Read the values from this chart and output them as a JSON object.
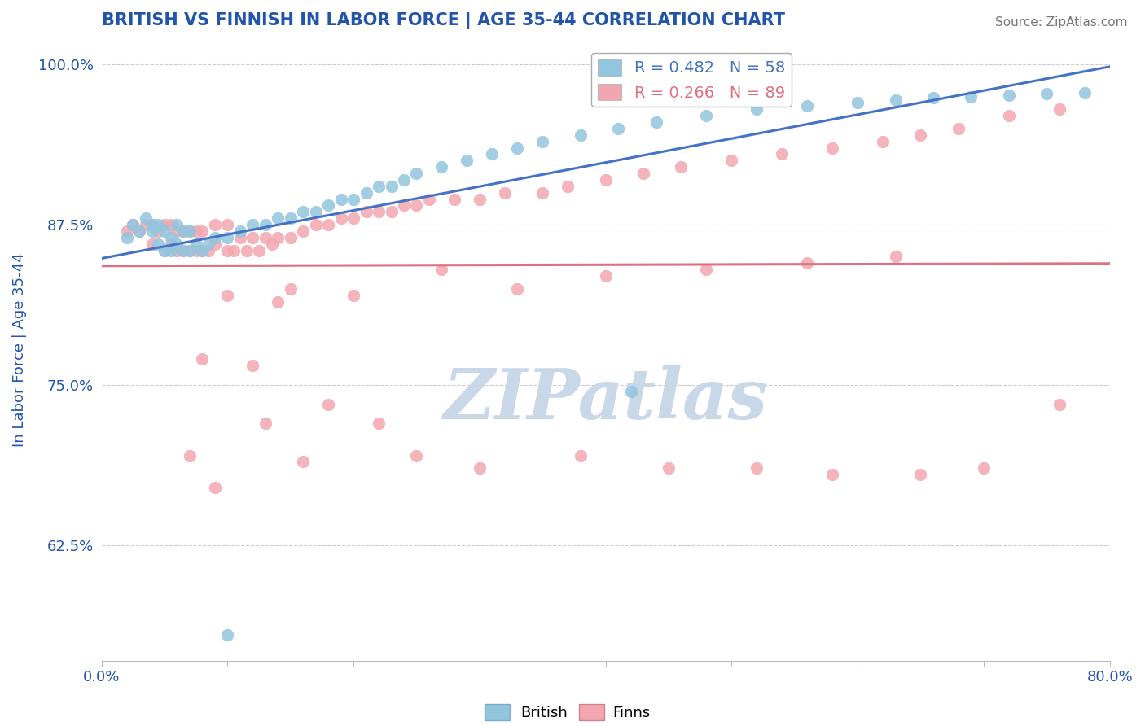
{
  "title": "BRITISH VS FINNISH IN LABOR FORCE | AGE 35-44 CORRELATION CHART",
  "source_text": "Source: ZipAtlas.com",
  "ylabel": "In Labor Force | Age 35-44",
  "xlim": [
    0.0,
    0.8
  ],
  "ylim": [
    0.535,
    1.02
  ],
  "yticks": [
    0.625,
    0.75,
    0.875,
    1.0
  ],
  "ytick_labels": [
    "62.5%",
    "75.0%",
    "87.5%",
    "100.0%"
  ],
  "british_color": "#92C5DE",
  "finns_color": "#F4A6B0",
  "british_line_color": "#4472C4",
  "finns_line_color": "#E07080",
  "legend_british_label": "R = 0.482   N = 58",
  "legend_finns_label": "R = 0.266   N = 89",
  "watermark": "ZIPatlas",
  "watermark_color": "#C8D8E8",
  "title_color": "#2255AA",
  "axis_label_color": "#2255AA",
  "tick_label_color": "#2255AA",
  "source_color": "#777777",
  "grid_color": "#CCCCCC",
  "background_color": "#FFFFFF",
  "british_x": [
    0.02,
    0.025,
    0.03,
    0.035,
    0.04,
    0.04,
    0.045,
    0.045,
    0.05,
    0.05,
    0.055,
    0.055,
    0.06,
    0.06,
    0.065,
    0.065,
    0.07,
    0.07,
    0.075,
    0.08,
    0.085,
    0.09,
    0.1,
    0.11,
    0.12,
    0.13,
    0.14,
    0.15,
    0.16,
    0.17,
    0.18,
    0.19,
    0.2,
    0.21,
    0.22,
    0.23,
    0.24,
    0.25,
    0.27,
    0.29,
    0.31,
    0.33,
    0.35,
    0.38,
    0.41,
    0.44,
    0.48,
    0.52,
    0.56,
    0.6,
    0.63,
    0.66,
    0.69,
    0.72,
    0.75,
    0.78,
    0.42,
    0.1
  ],
  "british_y": [
    0.865,
    0.875,
    0.87,
    0.88,
    0.87,
    0.875,
    0.86,
    0.875,
    0.855,
    0.87,
    0.855,
    0.865,
    0.86,
    0.875,
    0.855,
    0.87,
    0.855,
    0.87,
    0.86,
    0.855,
    0.86,
    0.865,
    0.865,
    0.87,
    0.875,
    0.875,
    0.88,
    0.88,
    0.885,
    0.885,
    0.89,
    0.895,
    0.895,
    0.9,
    0.905,
    0.905,
    0.91,
    0.915,
    0.92,
    0.925,
    0.93,
    0.935,
    0.94,
    0.945,
    0.95,
    0.955,
    0.96,
    0.965,
    0.968,
    0.97,
    0.972,
    0.974,
    0.975,
    0.976,
    0.977,
    0.978,
    0.745,
    0.555
  ],
  "finns_x": [
    0.02,
    0.025,
    0.03,
    0.035,
    0.04,
    0.04,
    0.045,
    0.05,
    0.05,
    0.055,
    0.055,
    0.06,
    0.06,
    0.065,
    0.065,
    0.07,
    0.07,
    0.075,
    0.075,
    0.08,
    0.08,
    0.085,
    0.09,
    0.09,
    0.1,
    0.1,
    0.105,
    0.11,
    0.115,
    0.12,
    0.125,
    0.13,
    0.135,
    0.14,
    0.15,
    0.16,
    0.17,
    0.18,
    0.19,
    0.2,
    0.21,
    0.22,
    0.23,
    0.24,
    0.25,
    0.26,
    0.28,
    0.3,
    0.32,
    0.35,
    0.37,
    0.4,
    0.43,
    0.46,
    0.5,
    0.54,
    0.58,
    0.62,
    0.65,
    0.68,
    0.72,
    0.76,
    0.14,
    0.2,
    0.27,
    0.33,
    0.4,
    0.48,
    0.56,
    0.63,
    0.1,
    0.15,
    0.12,
    0.08,
    0.13,
    0.18,
    0.22,
    0.07,
    0.09,
    0.16,
    0.25,
    0.3,
    0.38,
    0.45,
    0.52,
    0.58,
    0.65,
    0.7,
    0.76
  ],
  "finns_y": [
    0.87,
    0.875,
    0.87,
    0.875,
    0.86,
    0.875,
    0.87,
    0.855,
    0.875,
    0.86,
    0.875,
    0.855,
    0.87,
    0.855,
    0.87,
    0.855,
    0.87,
    0.855,
    0.87,
    0.855,
    0.87,
    0.855,
    0.86,
    0.875,
    0.855,
    0.875,
    0.855,
    0.865,
    0.855,
    0.865,
    0.855,
    0.865,
    0.86,
    0.865,
    0.865,
    0.87,
    0.875,
    0.875,
    0.88,
    0.88,
    0.885,
    0.885,
    0.885,
    0.89,
    0.89,
    0.895,
    0.895,
    0.895,
    0.9,
    0.9,
    0.905,
    0.91,
    0.915,
    0.92,
    0.925,
    0.93,
    0.935,
    0.94,
    0.945,
    0.95,
    0.96,
    0.965,
    0.815,
    0.82,
    0.84,
    0.825,
    0.835,
    0.84,
    0.845,
    0.85,
    0.82,
    0.825,
    0.765,
    0.77,
    0.72,
    0.735,
    0.72,
    0.695,
    0.67,
    0.69,
    0.695,
    0.685,
    0.695,
    0.685,
    0.685,
    0.68,
    0.68,
    0.685,
    0.735
  ]
}
